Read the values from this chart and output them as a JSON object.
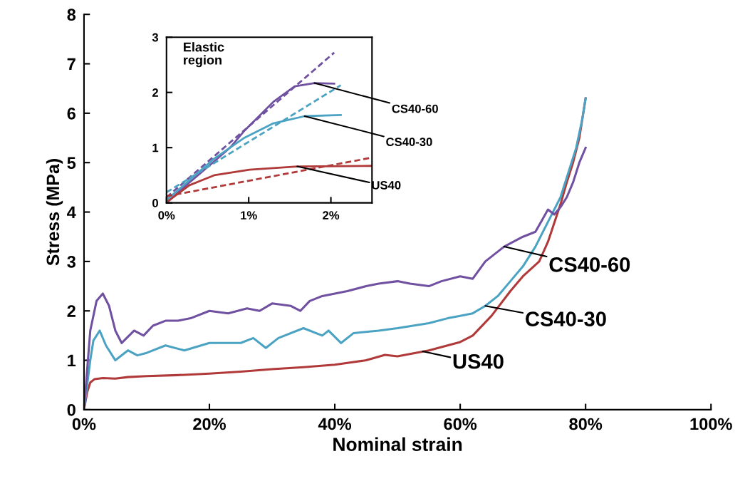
{
  "chart_data": [
    {
      "type": "line",
      "xlabel": "Nominal strain",
      "ylabel": "Stress (MPa)",
      "xlim": [
        0,
        100
      ],
      "xticks": [
        {
          "value": 0,
          "label": "0%"
        },
        {
          "value": 20,
          "label": "20%"
        },
        {
          "value": 40,
          "label": "40%"
        },
        {
          "value": 60,
          "label": "60%"
        },
        {
          "value": 80,
          "label": "80%"
        },
        {
          "value": 100,
          "label": "100%"
        }
      ],
      "ylim": [
        0,
        8
      ],
      "yticks": [
        0,
        1,
        2,
        3,
        4,
        5,
        6,
        7,
        8
      ],
      "grid": false,
      "legend": false,
      "series": [
        {
          "color": "#b03a3a",
          "x": [
            0,
            0.5,
            1,
            1.7,
            3,
            5,
            7,
            10,
            15,
            20,
            25,
            30,
            35,
            40,
            45,
            48,
            50,
            55,
            60,
            62,
            65,
            68,
            70,
            72.6,
            74,
            76.1,
            77,
            78,
            79,
            80
          ],
          "values": [
            0,
            0.35,
            0.55,
            0.62,
            0.64,
            0.63,
            0.66,
            0.68,
            0.7,
            0.73,
            0.77,
            0.82,
            0.86,
            0.91,
            1.0,
            1.11,
            1.08,
            1.2,
            1.37,
            1.5,
            1.9,
            2.4,
            2.7,
            3.0,
            3.4,
            4.2,
            4.6,
            5.0,
            5.5,
            6.3
          ]
        },
        {
          "color": "#4ba3c3",
          "x": [
            0,
            0.5,
            1,
            1.5,
            2.5,
            3.5,
            5,
            7,
            8.5,
            10,
            13,
            16,
            20,
            25,
            27,
            29,
            31,
            35,
            38,
            39,
            41,
            43,
            47,
            50,
            55,
            58,
            60,
            62,
            64,
            66,
            68,
            70,
            72,
            74,
            76,
            77.5,
            78.5,
            79.5,
            80
          ],
          "values": [
            0,
            0.5,
            1.0,
            1.4,
            1.6,
            1.3,
            1.0,
            1.2,
            1.1,
            1.15,
            1.3,
            1.2,
            1.35,
            1.35,
            1.45,
            1.25,
            1.45,
            1.65,
            1.5,
            1.6,
            1.35,
            1.55,
            1.6,
            1.65,
            1.75,
            1.85,
            1.9,
            1.95,
            2.1,
            2.3,
            2.6,
            2.9,
            3.3,
            3.8,
            4.3,
            4.9,
            5.3,
            5.9,
            6.3
          ]
        },
        {
          "color": "#7050a0",
          "x": [
            0,
            0.5,
            1,
            2,
            3,
            4,
            5,
            6,
            8,
            9.5,
            11,
            13,
            15,
            17,
            20,
            23,
            26,
            28,
            30,
            33,
            34.5,
            36,
            38,
            42,
            45,
            47,
            50,
            52,
            55,
            57,
            60,
            62,
            64,
            67,
            70,
            72,
            74,
            75,
            76,
            77,
            78,
            79,
            80
          ],
          "values": [
            0,
            0.8,
            1.6,
            2.2,
            2.35,
            2.1,
            1.6,
            1.35,
            1.6,
            1.5,
            1.7,
            1.8,
            1.8,
            1.85,
            2.0,
            1.95,
            2.05,
            2.0,
            2.15,
            2.1,
            2.0,
            2.2,
            2.3,
            2.4,
            2.5,
            2.55,
            2.6,
            2.55,
            2.5,
            2.6,
            2.7,
            2.65,
            3.0,
            3.3,
            3.5,
            3.6,
            4.05,
            3.95,
            4.1,
            4.3,
            4.6,
            5.0,
            5.3
          ]
        }
      ],
      "annotations": [
        {
          "text": "CS40-60",
          "x": 67,
          "y": 3.3
        },
        {
          "text": "CS40-30",
          "x": 64,
          "y": 2.1
        },
        {
          "text": "US40",
          "x": 54,
          "y": 1.18
        }
      ]
    },
    {
      "type": "line",
      "xlim": [
        0,
        2.5
      ],
      "xticks": [
        {
          "value": 0,
          "label": "0%"
        },
        {
          "value": 1,
          "label": "1%"
        },
        {
          "value": 2,
          "label": "2%"
        }
      ],
      "ylim": [
        0,
        3
      ],
      "yticks": [
        0,
        1,
        2,
        3
      ],
      "grid": false,
      "legend": false,
      "series": [
        {
          "color": "#7050a0",
          "x": [
            0,
            0.28,
            0.58,
            0.78,
            0.95,
            1.3,
            1.56,
            1.8,
            2.04
          ],
          "values": [
            0,
            0.37,
            0.75,
            1.01,
            1.31,
            1.83,
            2.11,
            2.17,
            2.16
          ]
        },
        {
          "color": "#7050a0",
          "line_style": "dashed",
          "x": [
            0,
            2.04
          ],
          "values": [
            0.1,
            2.72
          ]
        },
        {
          "color": "#4ba3c3",
          "x": [
            0,
            0.58,
            0.95,
            1.3,
            1.68,
            2.12
          ],
          "values": [
            0.05,
            0.8,
            1.18,
            1.44,
            1.57,
            1.59
          ]
        },
        {
          "color": "#4ba3c3",
          "line_style": "dashed",
          "x": [
            0,
            2.12
          ],
          "values": [
            0.19,
            2.13
          ]
        },
        {
          "color": "#b03a3a",
          "x": [
            0,
            0.28,
            0.58,
            1.01,
            1.59,
            2.5
          ],
          "values": [
            0.01,
            0.32,
            0.5,
            0.6,
            0.66,
            0.67
          ]
        },
        {
          "color": "#b03a3a",
          "line_style": "dashed",
          "x": [
            0,
            2.5
          ],
          "values": [
            0.12,
            0.82
          ]
        }
      ],
      "annotations": [
        "Elastic region",
        {
          "text": "CS40-60",
          "x": 1.8,
          "y": 2.17
        },
        {
          "text": "CS40-30",
          "x": 1.68,
          "y": 1.57
        },
        {
          "text": "US40",
          "x": 1.59,
          "y": 0.66
        }
      ]
    }
  ]
}
